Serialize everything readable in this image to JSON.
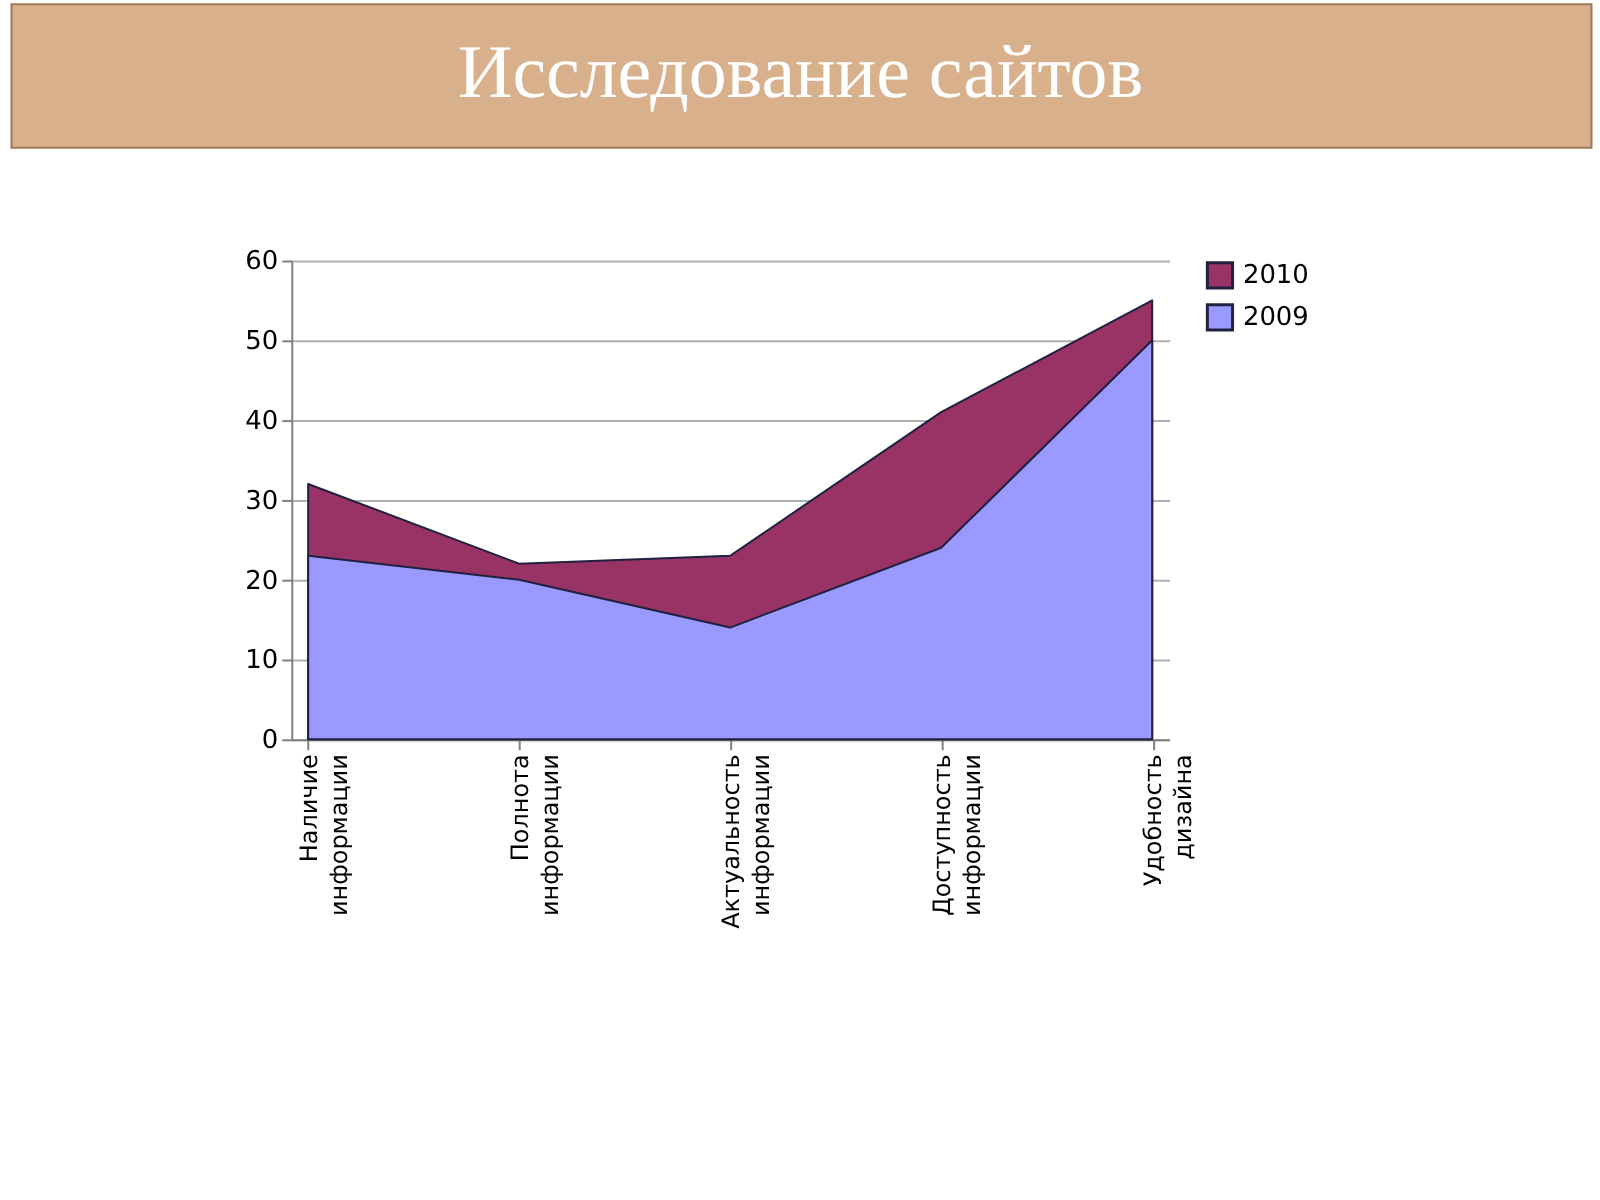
{
  "chart_data": {
    "type": "area",
    "title": "Исследование сайтов",
    "categories": [
      "Наличие информации",
      "Полнота информации",
      "Актуальность информации",
      "Доступность информации",
      "Удобность дизайна"
    ],
    "series": [
      {
        "name": "2009",
        "color": "#9999ff",
        "values": [
          23,
          20,
          14,
          24,
          50
        ]
      },
      {
        "name": "2010",
        "color": "#993366",
        "values": [
          32,
          22,
          23,
          41,
          55
        ]
      }
    ],
    "ylim": [
      0,
      60
    ],
    "yticks": [
      0,
      10,
      20,
      30,
      40,
      50,
      60
    ],
    "grid": "y",
    "legend": "right"
  }
}
